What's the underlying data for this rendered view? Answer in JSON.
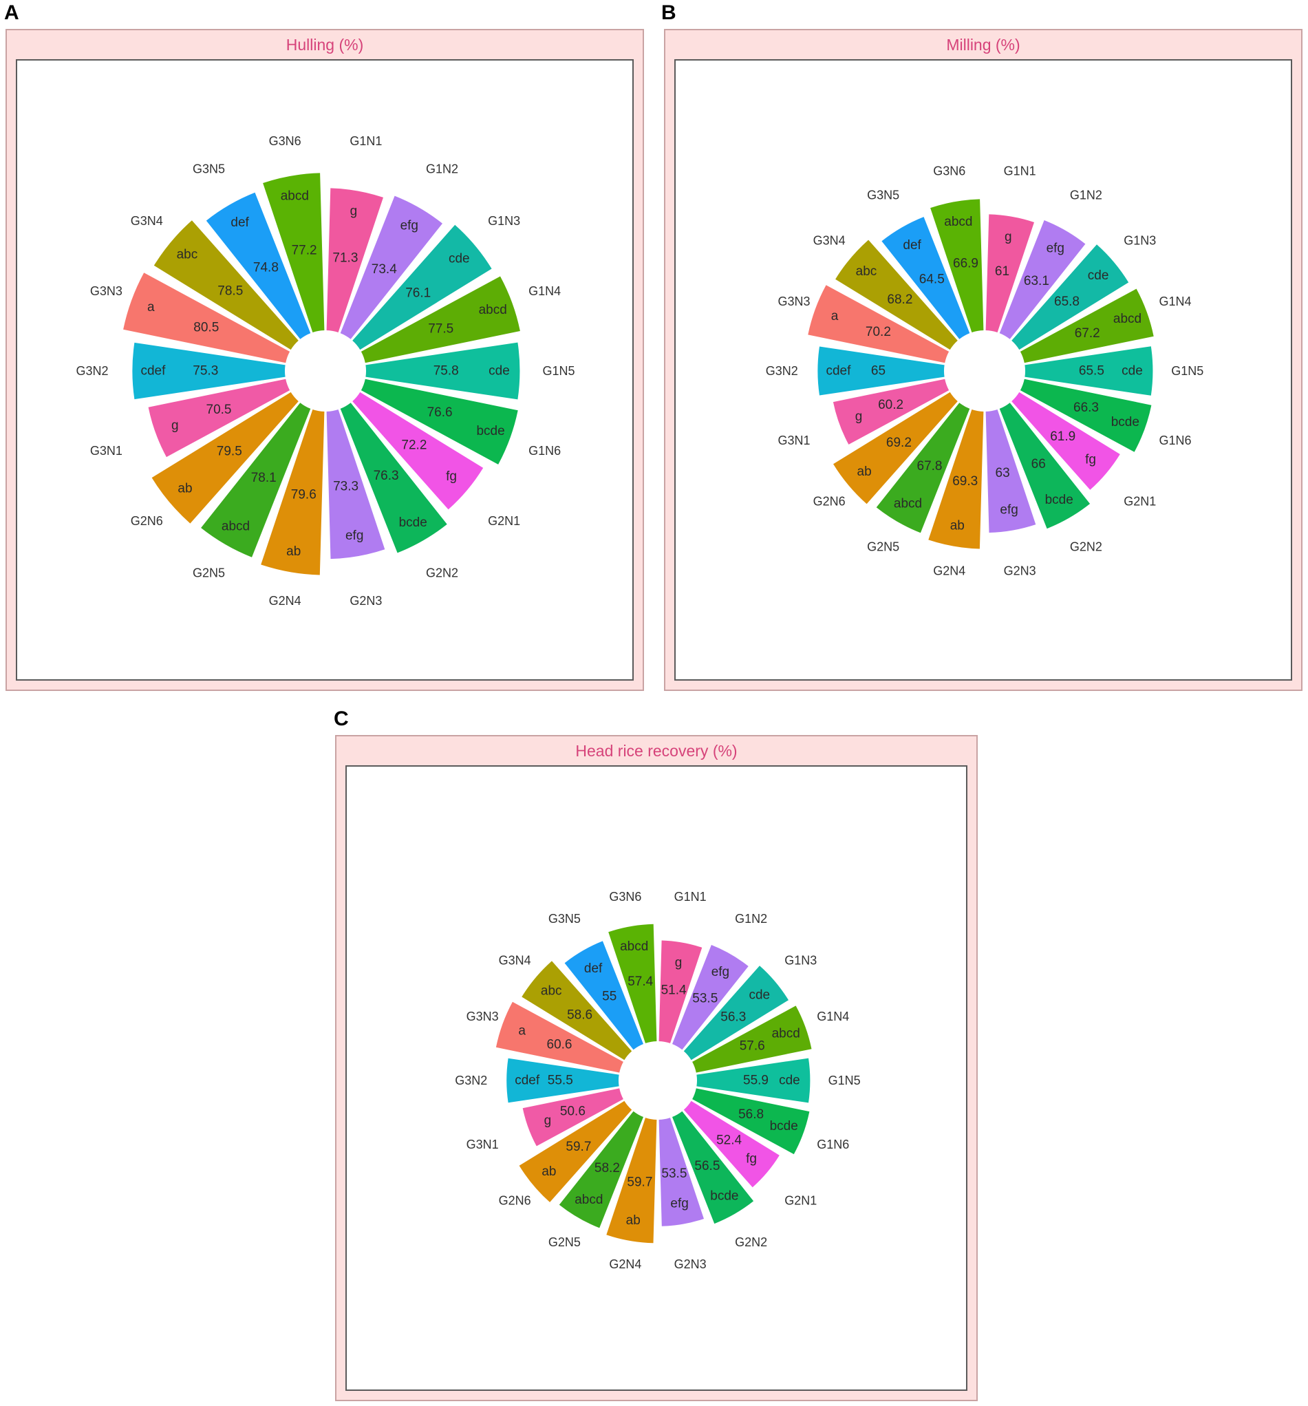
{
  "panels": [
    {
      "letter": "A",
      "title": "Hulling (%)"
    },
    {
      "letter": "B",
      "title": "Milling (%)"
    },
    {
      "letter": "C",
      "title": "Head rice recovery (%)"
    }
  ],
  "chart_data": [
    {
      "type": "bar",
      "polar": true,
      "title": "Hulling (%)",
      "categories": [
        "G1N1",
        "G1N2",
        "G1N3",
        "G1N4",
        "G1N5",
        "G1N6",
        "G2N1",
        "G2N2",
        "G2N3",
        "G2N4",
        "G2N5",
        "G2N6",
        "G3N1",
        "G3N2",
        "G3N3",
        "G3N4",
        "G3N5",
        "G3N6"
      ],
      "values": [
        71.3,
        73.4,
        76.1,
        77.5,
        75.8,
        76.6,
        72.2,
        76.3,
        73.3,
        79.6,
        78.1,
        79.5,
        70.5,
        75.3,
        80.5,
        78.5,
        74.8,
        77.2
      ],
      "letters": [
        "g",
        "efg",
        "cde",
        "abcd",
        "cde",
        "bcde",
        "fg",
        "bcde",
        "efg",
        "ab",
        "abcd",
        "ab",
        "g",
        "cdef",
        "a",
        "abc",
        "def",
        "abcd"
      ],
      "colors": [
        "#f0589f",
        "#b07cf1",
        "#13b9a6",
        "#5dad05",
        "#0fbf9c",
        "#0cb74f",
        "#f154e6",
        "#0db65a",
        "#b07cf1",
        "#de8f08",
        "#3bab1f",
        "#de8f08",
        "#f05aa6",
        "#12b6d6",
        "#f7766d",
        "#aba003",
        "#1b9ef6",
        "#5ab304"
      ]
    },
    {
      "type": "bar",
      "polar": true,
      "title": "Milling (%)",
      "categories": [
        "G1N1",
        "G1N2",
        "G1N3",
        "G1N4",
        "G1N5",
        "G1N6",
        "G2N1",
        "G2N2",
        "G2N3",
        "G2N4",
        "G2N5",
        "G2N6",
        "G3N1",
        "G3N2",
        "G3N3",
        "G3N4",
        "G3N5",
        "G3N6"
      ],
      "values": [
        61,
        63.1,
        65.8,
        67.2,
        65.5,
        66.3,
        61.9,
        66,
        63,
        69.3,
        67.8,
        69.2,
        60.2,
        65,
        70.2,
        68.2,
        64.5,
        66.9
      ],
      "letters": [
        "g",
        "efg",
        "cde",
        "abcd",
        "cde",
        "bcde",
        "fg",
        "bcde",
        "efg",
        "ab",
        "abcd",
        "ab",
        "g",
        "cdef",
        "a",
        "abc",
        "def",
        "abcd"
      ],
      "colors": [
        "#f0589f",
        "#b07cf1",
        "#13b9a6",
        "#5dad05",
        "#0fbf9c",
        "#0cb74f",
        "#f154e6",
        "#0db65a",
        "#b07cf1",
        "#de8f08",
        "#3bab1f",
        "#de8f08",
        "#f05aa6",
        "#12b6d6",
        "#f7766d",
        "#aba003",
        "#1b9ef6",
        "#5ab304"
      ]
    },
    {
      "type": "bar",
      "polar": true,
      "title": "Head rice recovery (%)",
      "categories": [
        "G1N1",
        "G1N2",
        "G1N3",
        "G1N4",
        "G1N5",
        "G1N6",
        "G2N1",
        "G2N2",
        "G2N3",
        "G2N4",
        "G2N5",
        "G2N6",
        "G3N1",
        "G3N2",
        "G3N3",
        "G3N4",
        "G3N5",
        "G3N6"
      ],
      "values": [
        51.4,
        53.5,
        56.3,
        57.6,
        55.9,
        56.8,
        52.4,
        56.5,
        53.5,
        59.7,
        58.2,
        59.7,
        50.6,
        55.5,
        60.6,
        58.6,
        55,
        57.4
      ],
      "letters": [
        "g",
        "efg",
        "cde",
        "abcd",
        "cde",
        "bcde",
        "fg",
        "bcde",
        "efg",
        "ab",
        "abcd",
        "ab",
        "g",
        "cdef",
        "a",
        "abc",
        "def",
        "abcd"
      ],
      "colors": [
        "#f0589f",
        "#b07cf1",
        "#13b9a6",
        "#5dad05",
        "#0fbf9c",
        "#0cb74f",
        "#f154e6",
        "#0db65a",
        "#b07cf1",
        "#de8f08",
        "#3bab1f",
        "#de8f08",
        "#f05aa6",
        "#12b6d6",
        "#f7766d",
        "#aba003",
        "#1b9ef6",
        "#5ab304"
      ]
    }
  ]
}
